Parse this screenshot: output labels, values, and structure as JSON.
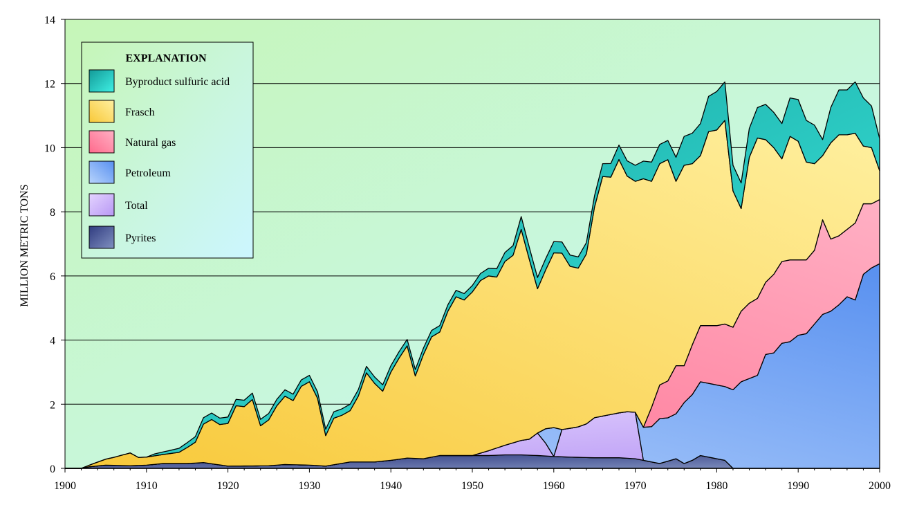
{
  "chart_data": {
    "type": "area",
    "stacked": true,
    "ylabel": "MILLION METRIC TONS",
    "xlabel": "",
    "xlim": [
      1900,
      2000
    ],
    "ylim": [
      0,
      14
    ],
    "x_ticks": [
      "1900",
      "1910",
      "1920",
      "1930",
      "1940",
      "1950",
      "1960",
      "1970",
      "1980",
      "1990",
      "2000"
    ],
    "y_ticks": [
      "0",
      "2",
      "4",
      "6",
      "8",
      "10",
      "12",
      "14"
    ],
    "grid": "horizontal",
    "legend": {
      "title": "EXPLANATION",
      "position": "top-left",
      "entries": [
        "Byproduct sulfuric acid",
        "Frasch",
        "Natural gas",
        "Petroleum",
        "Total",
        "Pyrites"
      ]
    },
    "colors": {
      "plot_bg_light": "#ccf5ff",
      "plot_bg_green": "#c8f5c0",
      "byproduct": "#20d0c8",
      "frasch": "#f8d860",
      "natural_gas": "#f87898",
      "petroleum": "#88b8f8",
      "total": "#d0b8f8",
      "pyrites": "#6070a8"
    },
    "layer_order": [
      "pyrites",
      "total",
      "petroleum",
      "natural_gas",
      "frasch",
      "byproduct"
    ],
    "series": {
      "pyrites": [
        [
          1900,
          0
        ],
        [
          1902,
          0
        ],
        [
          1903,
          0.05
        ],
        [
          1905,
          0.1
        ],
        [
          1908,
          0.08
        ],
        [
          1910,
          0.1
        ],
        [
          1912,
          0.15
        ],
        [
          1915,
          0.15
        ],
        [
          1917,
          0.18
        ],
        [
          1920,
          0.07
        ],
        [
          1925,
          0.08
        ],
        [
          1927,
          0.12
        ],
        [
          1930,
          0.1
        ],
        [
          1932,
          0.07
        ],
        [
          1935,
          0.2
        ],
        [
          1938,
          0.2
        ],
        [
          1940,
          0.25
        ],
        [
          1942,
          0.32
        ],
        [
          1944,
          0.3
        ],
        [
          1946,
          0.4
        ],
        [
          1948,
          0.4
        ],
        [
          1950,
          0.4
        ],
        [
          1952,
          0.4
        ],
        [
          1954,
          0.42
        ],
        [
          1956,
          0.42
        ],
        [
          1958,
          0.4
        ],
        [
          1960,
          0.37
        ],
        [
          1962,
          0.35
        ],
        [
          1965,
          0.33
        ],
        [
          1968,
          0.33
        ],
        [
          1970,
          0.3
        ],
        [
          1972,
          0.2
        ],
        [
          1973,
          0.15
        ],
        [
          1975,
          0.3
        ],
        [
          1976,
          0.15
        ],
        [
          1977,
          0.25
        ],
        [
          1978,
          0.4
        ],
        [
          1979,
          0.35
        ],
        [
          1980,
          0.3
        ],
        [
          1981,
          0.25
        ],
        [
          1982,
          0
        ]
      ],
      "total": [
        [
          1950,
          0
        ],
        [
          1952,
          0.15
        ],
        [
          1954,
          0.3
        ],
        [
          1956,
          0.45
        ],
        [
          1957,
          0.5
        ],
        [
          1958,
          0.7
        ],
        [
          1959,
          0.4
        ],
        [
          1960,
          0
        ],
        [
          1961,
          0.85
        ],
        [
          1962,
          0.9
        ],
        [
          1963,
          0.95
        ],
        [
          1964,
          1.05
        ],
        [
          1965,
          1.25
        ],
        [
          1966,
          1.3
        ],
        [
          1967,
          1.35
        ],
        [
          1968,
          1.4
        ],
        [
          1969,
          1.45
        ],
        [
          1970,
          1.45
        ],
        [
          1971,
          0
        ],
        [
          2000,
          0
        ]
      ],
      "petroleum": [
        [
          1900,
          0
        ],
        [
          1958,
          0
        ],
        [
          1959,
          0.45
        ],
        [
          1960,
          0.9
        ],
        [
          1961,
          0
        ],
        [
          1970,
          0
        ],
        [
          1971,
          1.03
        ],
        [
          1972,
          1.1
        ],
        [
          1973,
          1.4
        ],
        [
          1974,
          1.35
        ],
        [
          1975,
          1.4
        ],
        [
          1976,
          1.9
        ],
        [
          1977,
          2.05
        ],
        [
          1978,
          2.3
        ],
        [
          1979,
          2.3
        ],
        [
          1980,
          2.3
        ],
        [
          1981,
          2.3
        ],
        [
          1982,
          2.45
        ],
        [
          1983,
          2.7
        ],
        [
          1984,
          2.8
        ],
        [
          1985,
          2.9
        ],
        [
          1986,
          3.55
        ],
        [
          1987,
          3.6
        ],
        [
          1988,
          3.9
        ],
        [
          1989,
          3.95
        ],
        [
          1990,
          4.15
        ],
        [
          1991,
          4.2
        ],
        [
          1992,
          4.5
        ],
        [
          1993,
          4.8
        ],
        [
          1994,
          4.9
        ],
        [
          1995,
          5.1
        ],
        [
          1996,
          5.35
        ],
        [
          1997,
          5.25
        ],
        [
          1998,
          6.05
        ],
        [
          1999,
          6.25
        ],
        [
          2000,
          6.38
        ]
      ],
      "natural_gas": [
        [
          1900,
          0
        ],
        [
          1971,
          0
        ],
        [
          1972,
          0.6
        ],
        [
          1973,
          1.05
        ],
        [
          1974,
          1.15
        ],
        [
          1975,
          1.5
        ],
        [
          1976,
          1.15
        ],
        [
          1977,
          1.55
        ],
        [
          1978,
          1.75
        ],
        [
          1979,
          1.8
        ],
        [
          1980,
          1.85
        ],
        [
          1981,
          1.95
        ],
        [
          1982,
          1.95
        ],
        [
          1983,
          2.2
        ],
        [
          1984,
          2.35
        ],
        [
          1985,
          2.4
        ],
        [
          1986,
          2.25
        ],
        [
          1987,
          2.45
        ],
        [
          1988,
          2.55
        ],
        [
          1989,
          2.55
        ],
        [
          1990,
          2.35
        ],
        [
          1991,
          2.3
        ],
        [
          1992,
          2.3
        ],
        [
          1993,
          2.95
        ],
        [
          1994,
          2.25
        ],
        [
          1995,
          2.15
        ],
        [
          1996,
          2.1
        ],
        [
          1997,
          2.4
        ],
        [
          1998,
          2.2
        ],
        [
          1999,
          2.0
        ],
        [
          2000,
          2.0
        ]
      ],
      "frasch": [
        [
          1900,
          0
        ],
        [
          1902,
          0
        ],
        [
          1903,
          0.05
        ],
        [
          1904,
          0.12
        ],
        [
          1906,
          0.25
        ],
        [
          1908,
          0.4
        ],
        [
          1909,
          0.25
        ],
        [
          1910,
          0.25
        ],
        [
          1912,
          0.28
        ],
        [
          1914,
          0.35
        ],
        [
          1916,
          0.65
        ],
        [
          1917,
          1.2
        ],
        [
          1918,
          1.38
        ],
        [
          1919,
          1.26
        ],
        [
          1920,
          1.33
        ],
        [
          1921,
          1.88
        ],
        [
          1922,
          1.85
        ],
        [
          1923,
          2.07
        ],
        [
          1924,
          1.25
        ],
        [
          1925,
          1.43
        ],
        [
          1926,
          1.85
        ],
        [
          1927,
          2.13
        ],
        [
          1928,
          2.0
        ],
        [
          1929,
          2.45
        ],
        [
          1930,
          2.6
        ],
        [
          1931,
          2.1
        ],
        [
          1932,
          0.95
        ],
        [
          1933,
          1.45
        ],
        [
          1934,
          1.5
        ],
        [
          1935,
          1.6
        ],
        [
          1936,
          2.05
        ],
        [
          1937,
          2.78
        ],
        [
          1938,
          2.45
        ],
        [
          1939,
          2.18
        ],
        [
          1940,
          2.75
        ],
        [
          1941,
          3.15
        ],
        [
          1942,
          3.5
        ],
        [
          1943,
          2.57
        ],
        [
          1944,
          3.25
        ],
        [
          1945,
          3.75
        ],
        [
          1946,
          3.85
        ],
        [
          1947,
          4.5
        ],
        [
          1948,
          4.95
        ],
        [
          1949,
          4.85
        ],
        [
          1950,
          5.1
        ],
        [
          1951,
          5.38
        ],
        [
          1952,
          5.45
        ],
        [
          1953,
          5.33
        ],
        [
          1954,
          5.73
        ],
        [
          1955,
          5.85
        ],
        [
          1956,
          6.58
        ],
        [
          1957,
          5.6
        ],
        [
          1958,
          4.5
        ],
        [
          1959,
          4.95
        ],
        [
          1960,
          5.45
        ],
        [
          1961,
          5.5
        ],
        [
          1962,
          5.05
        ],
        [
          1963,
          4.95
        ],
        [
          1964,
          5.3
        ],
        [
          1965,
          6.57
        ],
        [
          1966,
          7.47
        ],
        [
          1967,
          7.4
        ],
        [
          1968,
          7.9
        ],
        [
          1969,
          7.35
        ],
        [
          1970,
          7.2
        ],
        [
          1971,
          7.75
        ],
        [
          1972,
          7.05
        ],
        [
          1973,
          6.9
        ],
        [
          1974,
          6.9
        ],
        [
          1975,
          5.75
        ],
        [
          1976,
          6.25
        ],
        [
          1977,
          5.65
        ],
        [
          1978,
          5.3
        ],
        [
          1979,
          6.05
        ],
        [
          1980,
          6.1
        ],
        [
          1981,
          6.35
        ],
        [
          1982,
          4.25
        ],
        [
          1983,
          3.2
        ],
        [
          1984,
          4.55
        ],
        [
          1985,
          5.0
        ],
        [
          1986,
          4.45
        ],
        [
          1987,
          3.95
        ],
        [
          1988,
          3.2
        ],
        [
          1989,
          3.85
        ],
        [
          1990,
          3.7
        ],
        [
          1991,
          3.05
        ],
        [
          1992,
          2.7
        ],
        [
          1993,
          2.0
        ],
        [
          1994,
          3.0
        ],
        [
          1995,
          3.15
        ],
        [
          1996,
          2.95
        ],
        [
          1997,
          2.8
        ],
        [
          1998,
          1.8
        ],
        [
          1999,
          1.75
        ],
        [
          2000,
          0.9
        ]
      ],
      "byproduct": [
        [
          1900,
          0
        ],
        [
          1910,
          0
        ],
        [
          1911,
          0.06
        ],
        [
          1913,
          0.1
        ],
        [
          1915,
          0.15
        ],
        [
          1917,
          0.2
        ],
        [
          1920,
          0.2
        ],
        [
          1925,
          0.2
        ],
        [
          1930,
          0.2
        ],
        [
          1935,
          0.2
        ],
        [
          1940,
          0.2
        ],
        [
          1945,
          0.2
        ],
        [
          1950,
          0.2
        ],
        [
          1955,
          0.3
        ],
        [
          1956,
          0.4
        ],
        [
          1958,
          0.35
        ],
        [
          1960,
          0.35
        ],
        [
          1962,
          0.35
        ],
        [
          1964,
          0.35
        ],
        [
          1965,
          0.35
        ],
        [
          1966,
          0.4
        ],
        [
          1968,
          0.45
        ],
        [
          1970,
          0.5
        ],
        [
          1972,
          0.6
        ],
        [
          1974,
          0.6
        ],
        [
          1976,
          0.9
        ],
        [
          1978,
          1.0
        ],
        [
          1979,
          1.1
        ],
        [
          1980,
          1.2
        ],
        [
          1981,
          1.2
        ],
        [
          1982,
          0.8
        ],
        [
          1983,
          0.8
        ],
        [
          1984,
          0.9
        ],
        [
          1985,
          0.95
        ],
        [
          1986,
          1.1
        ],
        [
          1987,
          1.1
        ],
        [
          1988,
          1.1
        ],
        [
          1989,
          1.2
        ],
        [
          1990,
          1.3
        ],
        [
          1991,
          1.3
        ],
        [
          1992,
          1.2
        ],
        [
          1993,
          0.5
        ],
        [
          1994,
          1.1
        ],
        [
          1995,
          1.4
        ],
        [
          1996,
          1.4
        ],
        [
          1997,
          1.6
        ],
        [
          1998,
          1.5
        ],
        [
          1999,
          1.3
        ],
        [
          2000,
          1.0
        ]
      ]
    }
  }
}
